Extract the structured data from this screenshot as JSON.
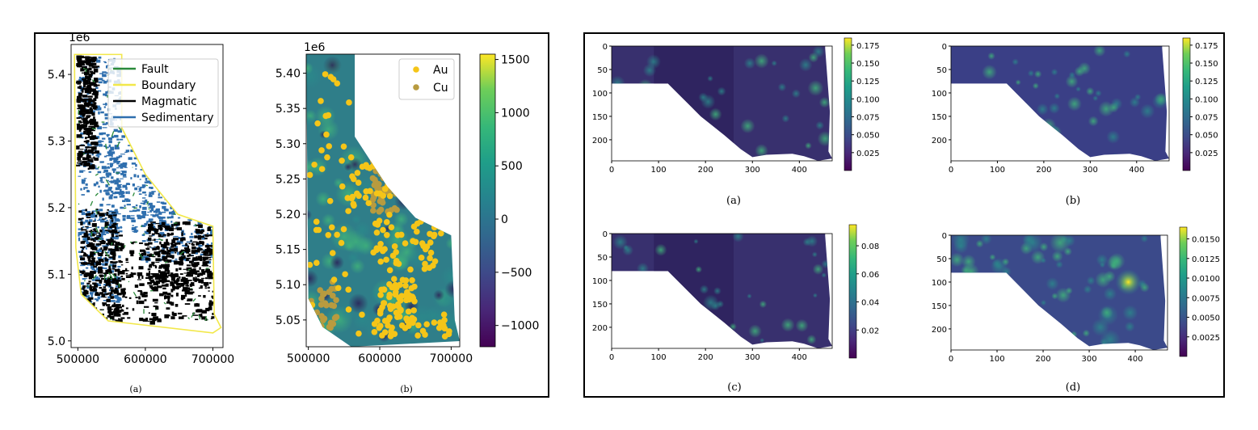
{
  "colors": {
    "fault": "#2a8a3a",
    "boundary": "#f2e84a",
    "magmatic": "#000000",
    "sedimentary": "#2f6fae",
    "au": "#f5c518",
    "cu": "#b89b3f"
  },
  "chart_data": [
    {
      "id": "a",
      "type": "scatter",
      "caption": "(a)",
      "offset_label": "1e6",
      "xlim": [
        490000,
        715000
      ],
      "ylim": [
        4.99,
        5.445
      ],
      "x_ticks": [
        500000,
        600000,
        700000
      ],
      "x_tick_labels": [
        "500000",
        "600000",
        "700000"
      ],
      "y_ticks": [
        5.0,
        5.1,
        5.2,
        5.3,
        5.4
      ],
      "y_tick_labels": [
        "5.0",
        "5.1",
        "5.2",
        "5.3",
        "5.4"
      ],
      "legend_position": "top-right",
      "legend": [
        "Fault",
        "Boundary",
        "Magmatic",
        "Sedimentary"
      ],
      "boundary_polygon": [
        [
          495000,
          5.43
        ],
        [
          565000,
          5.43
        ],
        [
          565000,
          5.32
        ],
        [
          600000,
          5.25
        ],
        [
          648000,
          5.19
        ],
        [
          700000,
          5.172
        ],
        [
          702000,
          5.04
        ],
        [
          712000,
          5.02
        ],
        [
          700000,
          5.012
        ],
        [
          545000,
          5.03
        ],
        [
          505000,
          5.07
        ],
        [
          497000,
          5.14
        ],
        [
          495000,
          5.43
        ]
      ]
    },
    {
      "id": "b",
      "type": "scatter",
      "caption": "(b)",
      "offset_label": "1e6",
      "xlim": [
        497000,
        712000
      ],
      "ylim": [
        5.012,
        5.427
      ],
      "x_ticks": [
        500000,
        600000,
        700000
      ],
      "x_tick_labels": [
        "500000",
        "600000",
        "700000"
      ],
      "y_ticks": [
        5.05,
        5.1,
        5.15,
        5.2,
        5.25,
        5.3,
        5.35,
        5.4
      ],
      "y_tick_labels": [
        "5.05",
        "5.10",
        "5.15",
        "5.20",
        "5.25",
        "5.30",
        "5.35",
        "5.40"
      ],
      "legend_position": "top-right",
      "legend": [
        "Au",
        "Cu"
      ],
      "colorbar": {
        "min": -1200,
        "max": 1550,
        "ticks": [
          1500,
          1000,
          500,
          0,
          -500,
          -1000
        ],
        "tick_labels": [
          "1500",
          "1000",
          "500",
          "0",
          "−500",
          "−1000"
        ]
      }
    },
    {
      "id": "pa",
      "type": "heatmap",
      "caption": "(a)",
      "x_ticks": [
        0,
        100,
        200,
        300,
        400
      ],
      "y_ticks": [
        0,
        50,
        100,
        150,
        200
      ],
      "xlim": [
        0,
        470
      ],
      "ylim": [
        0,
        245
      ],
      "colorbar": {
        "min": 0.0,
        "max": 0.185,
        "ticks": [
          0.175,
          0.15,
          0.125,
          0.1,
          0.075,
          0.05,
          0.025
        ],
        "tick_labels": [
          "0.175",
          "0.150",
          "0.125",
          "0.100",
          "0.075",
          "0.050",
          "0.025"
        ]
      }
    },
    {
      "id": "pb",
      "type": "heatmap",
      "caption": "(b)",
      "x_ticks": [
        0,
        100,
        200,
        300,
        400
      ],
      "y_ticks": [
        0,
        50,
        100,
        150,
        200
      ],
      "xlim": [
        0,
        470
      ],
      "ylim": [
        0,
        245
      ],
      "colorbar": {
        "min": 0.0,
        "max": 0.185,
        "ticks": [
          0.175,
          0.15,
          0.125,
          0.1,
          0.075,
          0.05,
          0.025
        ],
        "tick_labels": [
          "0.175",
          "0.150",
          "0.125",
          "0.100",
          "0.075",
          "0.050",
          "0.025"
        ]
      }
    },
    {
      "id": "pc",
      "type": "heatmap",
      "caption": "(c)",
      "x_ticks": [
        0,
        100,
        200,
        300,
        400
      ],
      "y_ticks": [
        0,
        50,
        100,
        150,
        200
      ],
      "xlim": [
        0,
        470
      ],
      "ylim": [
        0,
        245
      ],
      "colorbar": {
        "min": 0.0,
        "max": 0.095,
        "ticks": [
          0.08,
          0.06,
          0.04,
          0.02
        ],
        "tick_labels": [
          "0.08",
          "0.06",
          "0.04",
          "0.02"
        ]
      }
    },
    {
      "id": "pd",
      "type": "heatmap",
      "caption": "(d)",
      "x_ticks": [
        0,
        100,
        200,
        300,
        400
      ],
      "y_ticks": [
        0,
        50,
        100,
        150,
        200
      ],
      "xlim": [
        0,
        470
      ],
      "ylim": [
        0,
        245
      ],
      "colorbar": {
        "min": 0.0,
        "max": 0.0165,
        "ticks": [
          0.015,
          0.0125,
          0.01,
          0.0075,
          0.005,
          0.0025
        ],
        "tick_labels": [
          "0.0150",
          "0.0125",
          "0.0100",
          "0.0075",
          "0.0050",
          "0.0025"
        ]
      }
    }
  ]
}
